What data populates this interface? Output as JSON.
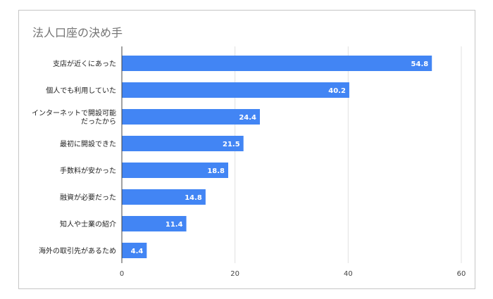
{
  "chart_data": {
    "type": "bar",
    "orientation": "horizontal",
    "title": "法人口座の決め手",
    "categories": [
      "支店が近くにあった",
      "個人でも利用していた",
      "インターネットで開設可能\nだったから",
      "最初に開設できた",
      "手数料が安かった",
      "融資が必要だった",
      "知人や士業の紹介",
      "海外の取引先があるため"
    ],
    "values": [
      54.8,
      40.2,
      24.4,
      21.5,
      18.8,
      14.8,
      11.4,
      4.4
    ],
    "data_labels": [
      "54.8",
      "40.2",
      "24.4",
      "21.5",
      "18.8",
      "14.8",
      "11.4",
      "4.4"
    ],
    "xlim": [
      0,
      60
    ],
    "x_ticks": [
      "0",
      "20",
      "40",
      "60"
    ],
    "grid": true,
    "bar_color": "#4285f4"
  }
}
